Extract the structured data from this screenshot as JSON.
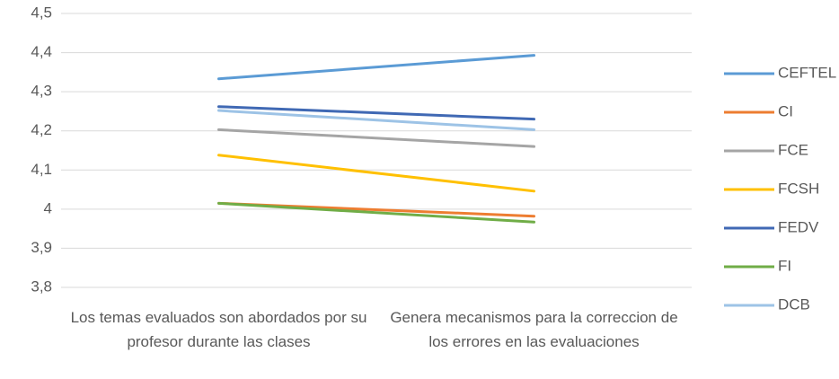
{
  "chart_data": {
    "type": "line",
    "categories": [
      "Los temas evaluados son abordados por su profesor durante las clases",
      "Genera mecanismos para la correccion de los errores en las evaluaciones"
    ],
    "series": [
      {
        "name": "CEFTEL",
        "color": "#5b9bd5",
        "values": [
          4.333,
          4.393
        ]
      },
      {
        "name": "CI",
        "color": "#ed7d31",
        "values": [
          4.015,
          3.982
        ]
      },
      {
        "name": "FCE",
        "color": "#a5a5a5",
        "values": [
          4.203,
          4.16
        ]
      },
      {
        "name": "FCSH",
        "color": "#ffc000",
        "values": [
          4.138,
          4.046
        ]
      },
      {
        "name": "FEDV",
        "color": "#4069b4",
        "values": [
          4.262,
          4.23
        ]
      },
      {
        "name": "FI",
        "color": "#70ad47",
        "values": [
          4.015,
          3.967
        ]
      },
      {
        "name": "DCB",
        "color": "#9dc3e6",
        "values": [
          4.252,
          4.203
        ]
      }
    ],
    "ylim": [
      3.8,
      4.5
    ],
    "yticks": [
      {
        "value": 3.8,
        "label": "3,8"
      },
      {
        "value": 3.9,
        "label": "3,9"
      },
      4,
      {
        "value": 4.1,
        "label": "4,1"
      },
      {
        "value": 4.2,
        "label": "4,2"
      },
      {
        "value": 4.3,
        "label": "4,3"
      },
      {
        "value": 4.4,
        "label": "4,4"
      },
      {
        "value": 4.5,
        "label": "4,5"
      }
    ],
    "grid": true,
    "legend": "right"
  }
}
